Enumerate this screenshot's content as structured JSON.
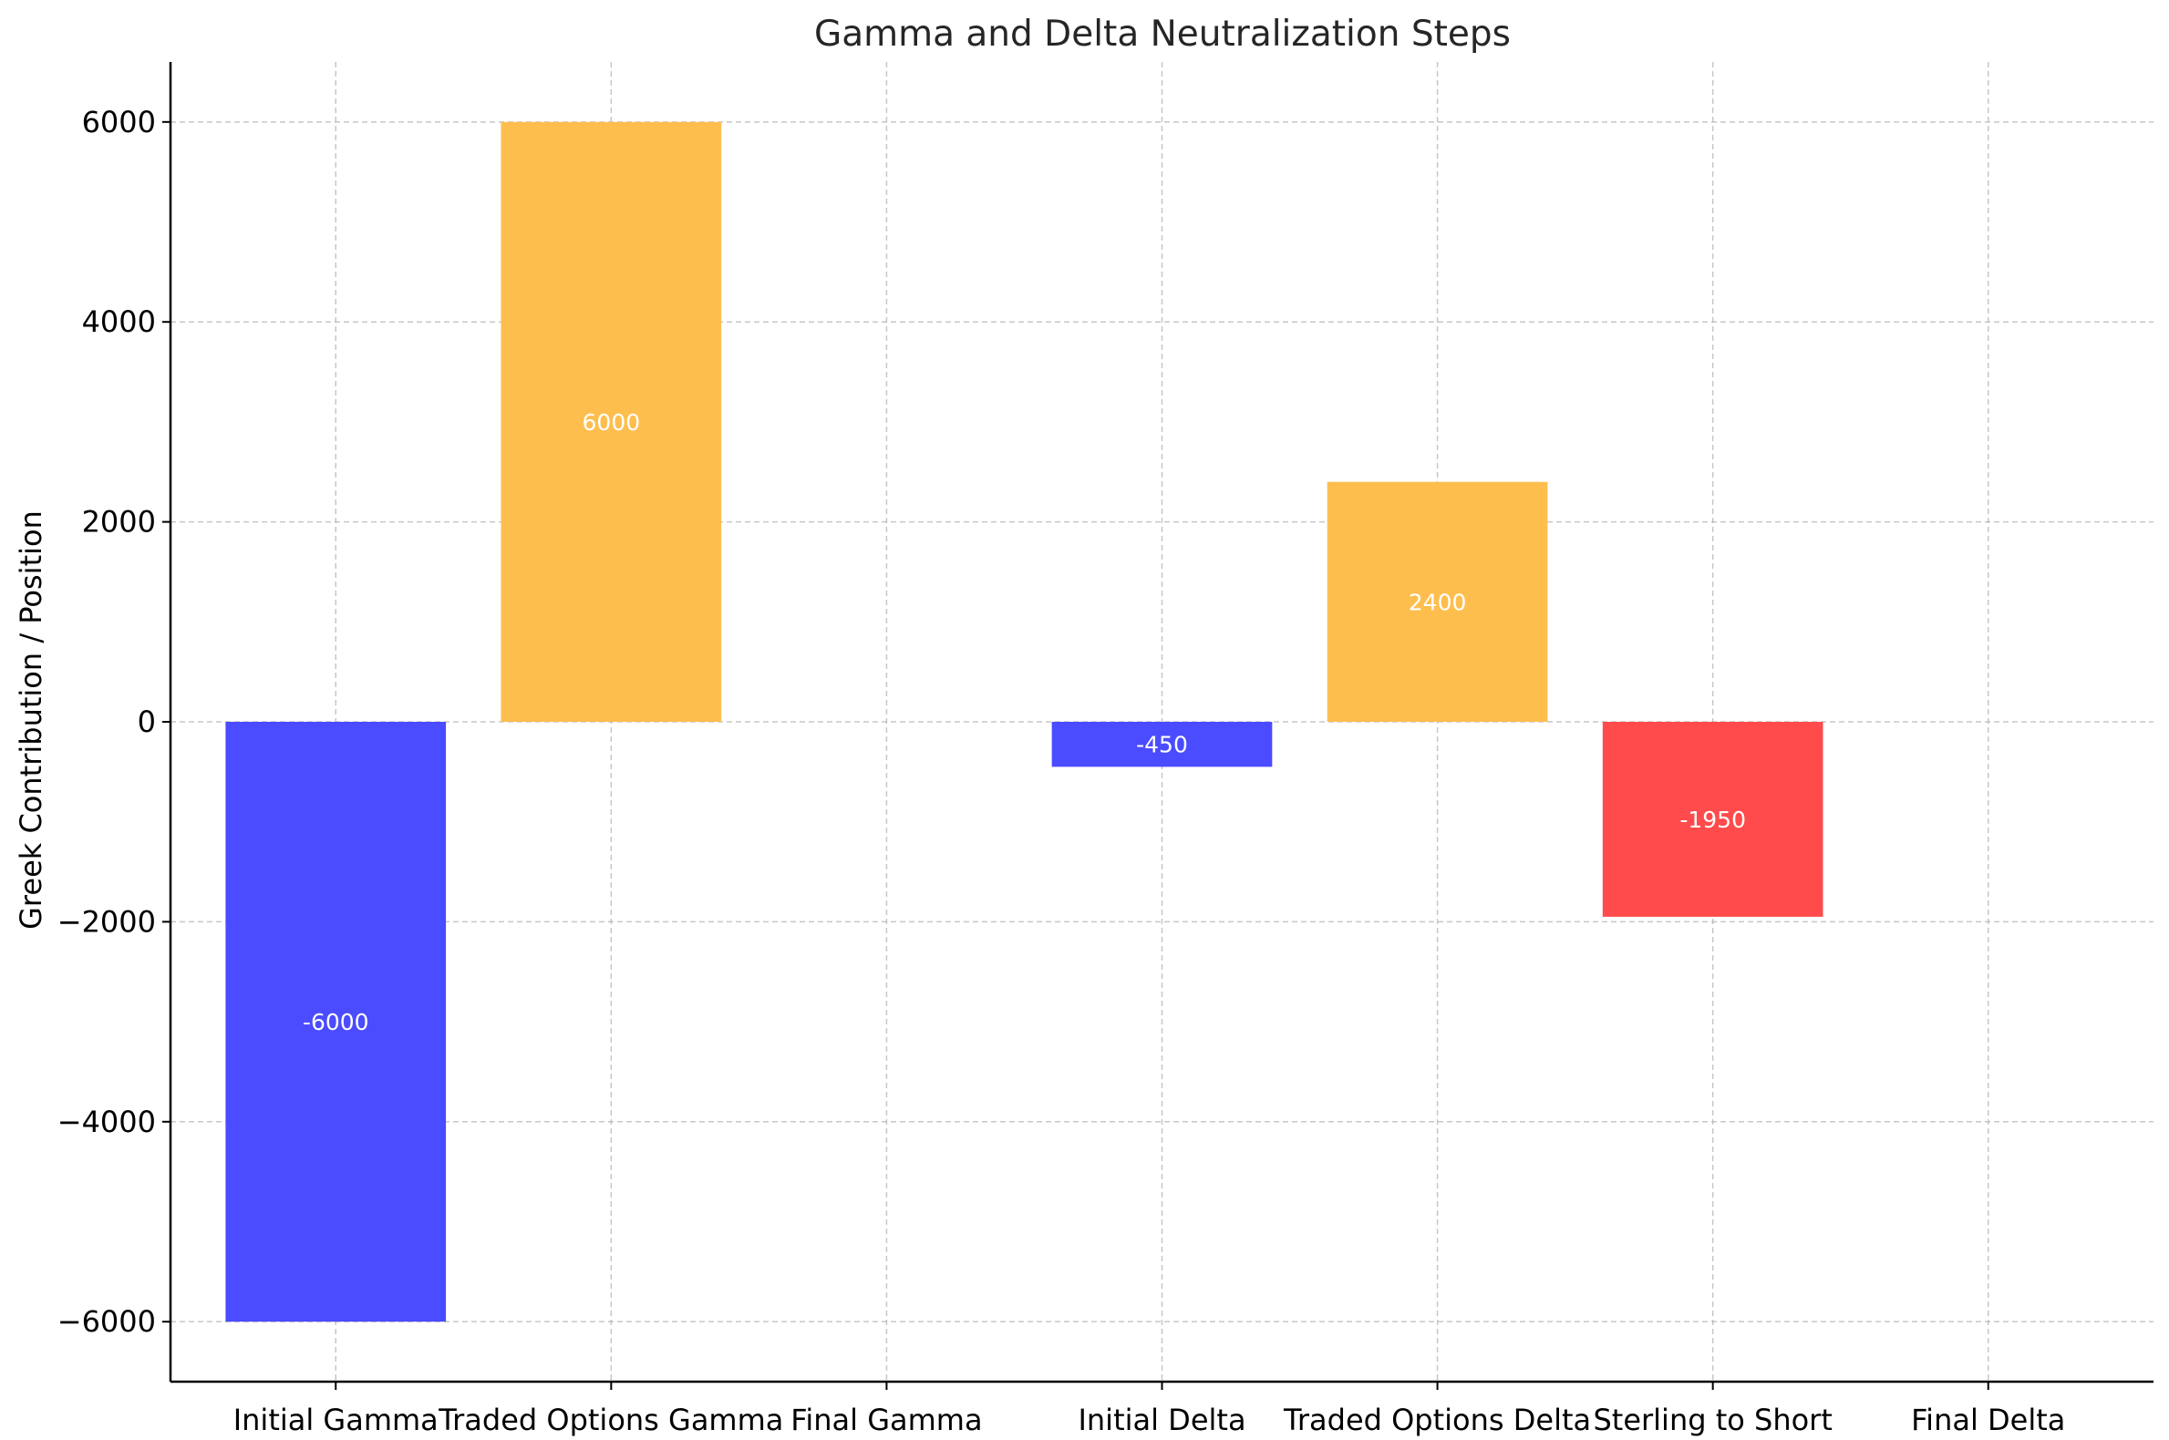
{
  "chart_data": {
    "type": "bar",
    "title": "Gamma and Delta Neutralization Steps",
    "xlabel": "",
    "ylabel": "Greek Contribution / Position",
    "ylim": [
      -6600,
      6600
    ],
    "yticks": [
      6000,
      4000,
      2000,
      0,
      -2000,
      -4000,
      -6000
    ],
    "ytick_labels": [
      "6000",
      "4000",
      "2000",
      "0",
      "−2000",
      "−4000",
      "−6000"
    ],
    "grid": true,
    "categories": [
      "Initial Gamma",
      "Traded Options Gamma",
      "Final Gamma",
      "Initial Delta",
      "Traded Options Delta",
      "Sterling to Short",
      "Final Delta"
    ],
    "values": [
      -6000,
      6000,
      0,
      -450,
      2400,
      -1950,
      0
    ],
    "bar_labels": [
      "-6000",
      "6000",
      "",
      "-450",
      "2400",
      "-1950",
      ""
    ],
    "colors": [
      "#4b4bff",
      "#febe4e",
      "#4bbf4b",
      "#4b4bff",
      "#febe4e",
      "#ff4b4b",
      "#4bbf4b"
    ]
  }
}
